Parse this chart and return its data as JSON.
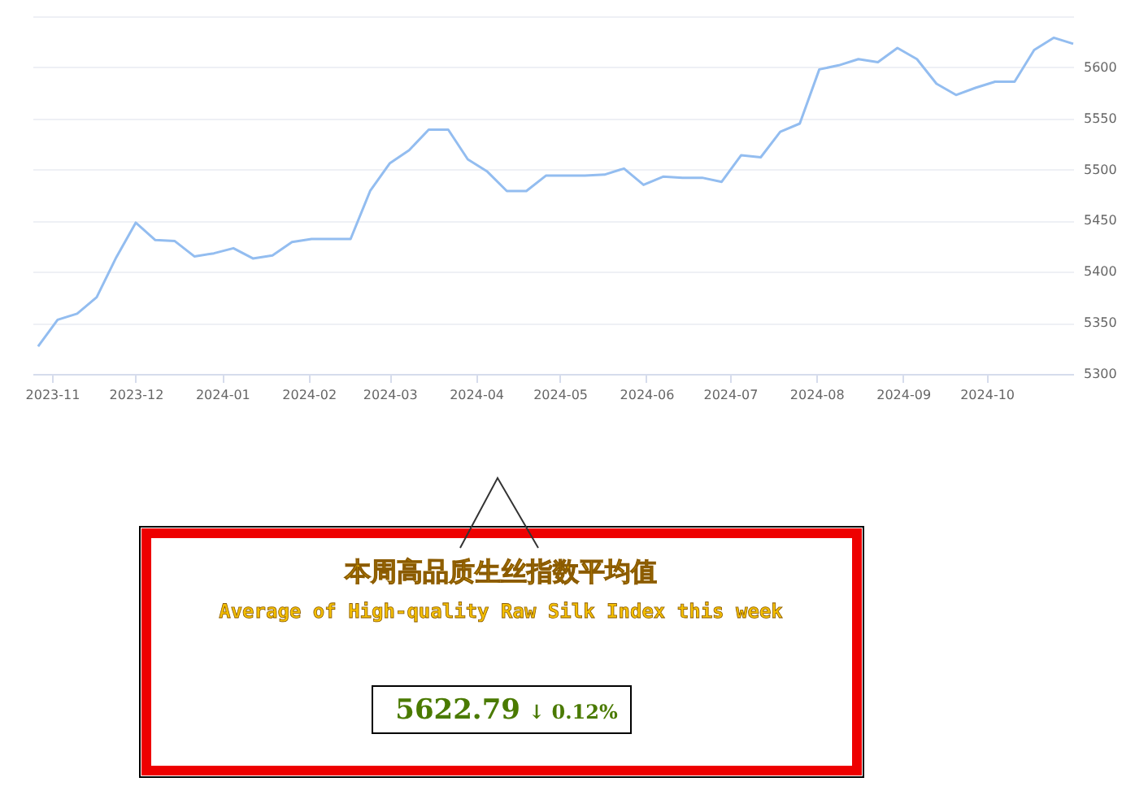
{
  "chart_data": {
    "type": "line",
    "x": [
      "2023-10-27",
      "2023-11-03",
      "2023-11-10",
      "2023-11-17",
      "2023-11-24",
      "2023-12-01",
      "2023-12-08",
      "2023-12-15",
      "2023-12-22",
      "2023-12-29",
      "2024-01-05",
      "2024-01-12",
      "2024-01-19",
      "2024-01-26",
      "2024-02-02",
      "2024-02-09",
      "2024-02-16",
      "2024-02-23",
      "2024-03-01",
      "2024-03-08",
      "2024-03-15",
      "2024-03-22",
      "2024-03-29",
      "2024-04-05",
      "2024-04-12",
      "2024-04-19",
      "2024-04-26",
      "2024-05-03",
      "2024-05-10",
      "2024-05-17",
      "2024-05-24",
      "2024-05-31",
      "2024-06-07",
      "2024-06-14",
      "2024-06-21",
      "2024-06-28",
      "2024-07-05",
      "2024-07-12",
      "2024-07-19",
      "2024-07-26",
      "2024-08-02",
      "2024-08-09",
      "2024-08-16",
      "2024-08-23",
      "2024-08-30",
      "2024-09-06",
      "2024-09-13",
      "2024-09-20",
      "2024-09-27",
      "2024-10-04",
      "2024-10-11",
      "2024-10-18",
      "2024-10-25",
      "2024-11-01"
    ],
    "series": [
      {
        "color": "#93bdf0",
        "values": [
          5327,
          5353,
          5359,
          5375,
          5414,
          5448,
          5431,
          5430,
          5415,
          5418,
          5423,
          5413,
          5416,
          5429,
          5432,
          5432,
          5432,
          5479,
          5506,
          5519,
          5539,
          5539,
          5510,
          5498,
          5479,
          5479,
          5494,
          5494,
          5494,
          5495,
          5501,
          5485,
          5493,
          5492,
          5492,
          5488,
          5514,
          5512,
          5537,
          5545,
          5598,
          5602,
          5608,
          5605,
          5619,
          5608,
          5584,
          5573,
          5580,
          5586,
          5586,
          5617,
          5629,
          5623
        ]
      }
    ],
    "xlim": [
      "2023-10-25",
      "2024-11-01"
    ],
    "xticks": [
      {
        "value": "2023-11",
        "label": "2023-11"
      },
      {
        "value": "2023-12",
        "label": "2023-12"
      },
      {
        "value": "2024-01",
        "label": "2024-01"
      },
      {
        "value": "2024-02",
        "label": "2024-02"
      },
      {
        "value": "2024-03",
        "label": "2024-03"
      },
      {
        "value": "2024-04",
        "label": "2024-04"
      },
      {
        "value": "2024-05",
        "label": "2024-05"
      },
      {
        "value": "2024-06",
        "label": "2024-06"
      },
      {
        "value": "2024-07",
        "label": "2024-07"
      },
      {
        "value": "2024-08",
        "label": "2024-08"
      },
      {
        "value": "2024-09",
        "label": "2024-09"
      },
      {
        "value": "2024-10",
        "label": "2024-10"
      }
    ],
    "ylim": [
      5300,
      5650
    ],
    "yticks": [
      5300,
      5350,
      5400,
      5450,
      5500,
      5550,
      5600,
      {
        "value": 5650,
        "label": null
      }
    ],
    "grid": "y",
    "marker": "none",
    "legend": false,
    "annotations": [
      "本周高品质生丝指数平均值",
      "Average of High-quality Raw Silk Index this week",
      "5622.79",
      "↓ 0.12%"
    ]
  }
}
